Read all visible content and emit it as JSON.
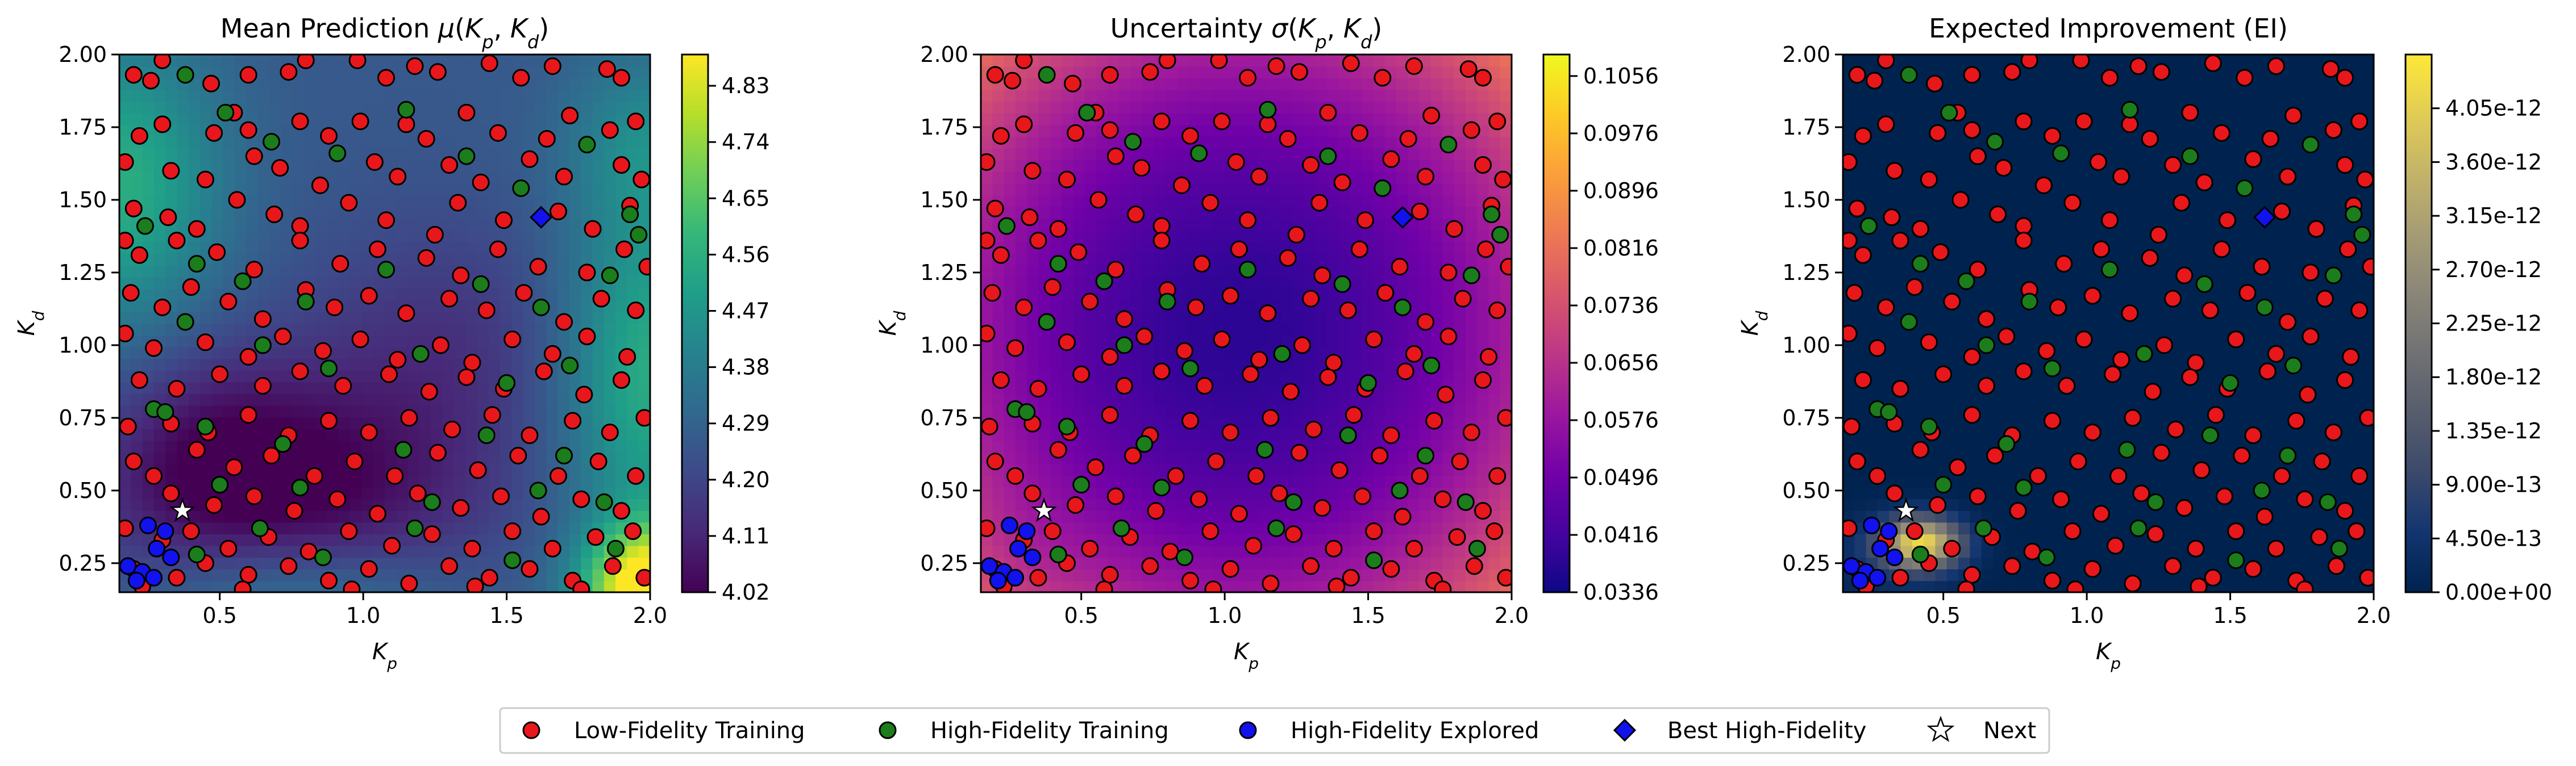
{
  "chart_data": [
    {
      "type": "heatmap",
      "title": "Mean Prediction μ(K_p, K_d)",
      "title_parts": [
        "Mean Prediction ",
        "μ",
        "(",
        "K",
        "p",
        ", ",
        "K",
        "d",
        ")"
      ],
      "xlabel": "K_p",
      "ylabel": "K_d",
      "xlim": [
        0.15,
        2.0
      ],
      "ylim": [
        0.15,
        2.0
      ],
      "xticks": [
        "0.5",
        "1.0",
        "1.5",
        "2.0"
      ],
      "yticks": [
        "0.25",
        "0.50",
        "0.75",
        "1.00",
        "1.25",
        "1.50",
        "1.75",
        "2.00"
      ],
      "colormap": "viridis",
      "colorbar_range": [
        4.02,
        4.88
      ],
      "colorbar_ticks": [
        "4.02",
        "4.11",
        "4.20",
        "4.29",
        "4.38",
        "4.47",
        "4.56",
        "4.65",
        "4.74",
        "4.83"
      ]
    },
    {
      "type": "heatmap",
      "title": "Uncertainty σ(K_p, K_d)",
      "title_parts": [
        "Uncertainty ",
        "σ",
        "(",
        "K",
        "p",
        ", ",
        "K",
        "d",
        ")"
      ],
      "xlabel": "K_p",
      "ylabel": "K_d",
      "xlim": [
        0.15,
        2.0
      ],
      "ylim": [
        0.15,
        2.0
      ],
      "xticks": [
        "0.5",
        "1.0",
        "1.5",
        "2.0"
      ],
      "yticks": [
        "0.25",
        "0.50",
        "0.75",
        "1.00",
        "1.25",
        "1.50",
        "1.75",
        "2.00"
      ],
      "colormap": "plasma",
      "colorbar_range": [
        0.0336,
        0.1086
      ],
      "colorbar_ticks": [
        "0.0336",
        "0.0416",
        "0.0496",
        "0.0576",
        "0.0656",
        "0.0736",
        "0.0816",
        "0.0896",
        "0.0976",
        "0.1056"
      ]
    },
    {
      "type": "heatmap",
      "title": "Expected Improvement (EI)",
      "xlabel": "K_p",
      "ylabel": "K_d",
      "xlim": [
        0.15,
        2.0
      ],
      "ylim": [
        0.15,
        2.0
      ],
      "xticks": [
        "0.5",
        "1.0",
        "1.5",
        "2.0"
      ],
      "yticks": [
        "0.25",
        "0.50",
        "0.75",
        "1.00",
        "1.25",
        "1.50",
        "1.75",
        "2.00"
      ],
      "colormap": "cividis",
      "colorbar_range": [
        0,
        4.5e-12
      ],
      "colorbar_ticks": [
        "0.00e+00",
        "4.50e-13",
        "9.00e-13",
        "1.35e-12",
        "1.80e-12",
        "2.25e-12",
        "2.70e-12",
        "3.15e-12",
        "3.60e-12",
        "4.05e-12"
      ]
    }
  ],
  "points": {
    "low_fidelity": [
      [
        0.2,
        1.93
      ],
      [
        0.26,
        1.91
      ],
      [
        0.3,
        1.98
      ],
      [
        0.47,
        1.9
      ],
      [
        0.6,
        1.93
      ],
      [
        0.74,
        1.94
      ],
      [
        0.8,
        1.98
      ],
      [
        0.98,
        1.98
      ],
      [
        1.08,
        1.92
      ],
      [
        1.18,
        1.96
      ],
      [
        1.26,
        1.94
      ],
      [
        1.44,
        1.97
      ],
      [
        1.55,
        1.92
      ],
      [
        1.66,
        1.96
      ],
      [
        1.85,
        1.95
      ],
      [
        1.9,
        1.92
      ],
      [
        0.22,
        1.72
      ],
      [
        0.3,
        1.76
      ],
      [
        0.48,
        1.73
      ],
      [
        0.55,
        1.8
      ],
      [
        0.6,
        1.74
      ],
      [
        0.78,
        1.77
      ],
      [
        0.88,
        1.72
      ],
      [
        0.99,
        1.77
      ],
      [
        1.15,
        1.76
      ],
      [
        1.22,
        1.71
      ],
      [
        1.36,
        1.8
      ],
      [
        1.47,
        1.73
      ],
      [
        1.64,
        1.71
      ],
      [
        1.72,
        1.79
      ],
      [
        1.86,
        1.74
      ],
      [
        1.95,
        1.77
      ],
      [
        0.17,
        1.63
      ],
      [
        0.33,
        1.6
      ],
      [
        0.45,
        1.57
      ],
      [
        0.62,
        1.65
      ],
      [
        0.71,
        1.61
      ],
      [
        0.85,
        1.55
      ],
      [
        1.04,
        1.63
      ],
      [
        1.12,
        1.58
      ],
      [
        1.3,
        1.62
      ],
      [
        1.41,
        1.56
      ],
      [
        1.58,
        1.64
      ],
      [
        1.7,
        1.58
      ],
      [
        1.9,
        1.62
      ],
      [
        1.97,
        1.57
      ],
      [
        0.2,
        1.47
      ],
      [
        0.32,
        1.44
      ],
      [
        0.42,
        1.4
      ],
      [
        0.56,
        1.5
      ],
      [
        0.69,
        1.45
      ],
      [
        0.78,
        1.41
      ],
      [
        0.95,
        1.49
      ],
      [
        1.08,
        1.43
      ],
      [
        1.25,
        1.38
      ],
      [
        1.33,
        1.49
      ],
      [
        1.49,
        1.43
      ],
      [
        1.68,
        1.46
      ],
      [
        1.8,
        1.4
      ],
      [
        1.93,
        1.48
      ],
      [
        0.17,
        1.36
      ],
      [
        0.22,
        1.31
      ],
      [
        0.35,
        1.36
      ],
      [
        0.49,
        1.32
      ],
      [
        0.62,
        1.26
      ],
      [
        0.78,
        1.36
      ],
      [
        0.92,
        1.28
      ],
      [
        1.05,
        1.33
      ],
      [
        1.22,
        1.3
      ],
      [
        1.34,
        1.24
      ],
      [
        1.47,
        1.33
      ],
      [
        1.61,
        1.27
      ],
      [
        1.78,
        1.25
      ],
      [
        1.91,
        1.33
      ],
      [
        1.99,
        1.27
      ],
      [
        0.19,
        1.18
      ],
      [
        0.3,
        1.13
      ],
      [
        0.4,
        1.2
      ],
      [
        0.53,
        1.15
      ],
      [
        0.65,
        1.09
      ],
      [
        0.8,
        1.19
      ],
      [
        0.9,
        1.13
      ],
      [
        1.02,
        1.17
      ],
      [
        1.15,
        1.11
      ],
      [
        1.3,
        1.16
      ],
      [
        1.43,
        1.12
      ],
      [
        1.56,
        1.18
      ],
      [
        1.7,
        1.08
      ],
      [
        1.83,
        1.16
      ],
      [
        1.95,
        1.12
      ],
      [
        0.17,
        1.04
      ],
      [
        0.27,
        0.99
      ],
      [
        0.45,
        1.01
      ],
      [
        0.6,
        0.96
      ],
      [
        0.72,
        1.03
      ],
      [
        0.86,
        0.98
      ],
      [
        0.99,
        1.02
      ],
      [
        1.12,
        0.95
      ],
      [
        1.27,
        1.0
      ],
      [
        1.38,
        0.94
      ],
      [
        1.52,
        1.02
      ],
      [
        1.66,
        0.97
      ],
      [
        1.78,
        1.03
      ],
      [
        1.92,
        0.96
      ],
      [
        0.22,
        0.88
      ],
      [
        0.35,
        0.85
      ],
      [
        0.5,
        0.9
      ],
      [
        0.65,
        0.86
      ],
      [
        0.78,
        0.91
      ],
      [
        0.93,
        0.86
      ],
      [
        1.09,
        0.9
      ],
      [
        1.23,
        0.84
      ],
      [
        1.36,
        0.89
      ],
      [
        1.49,
        0.85
      ],
      [
        1.63,
        0.91
      ],
      [
        1.77,
        0.83
      ],
      [
        1.9,
        0.88
      ],
      [
        0.18,
        0.72
      ],
      [
        0.33,
        0.73
      ],
      [
        0.46,
        0.7
      ],
      [
        0.6,
        0.76
      ],
      [
        0.74,
        0.69
      ],
      [
        0.88,
        0.74
      ],
      [
        1.02,
        0.7
      ],
      [
        1.16,
        0.75
      ],
      [
        1.31,
        0.71
      ],
      [
        1.45,
        0.76
      ],
      [
        1.58,
        0.69
      ],
      [
        1.73,
        0.74
      ],
      [
        1.86,
        0.7
      ],
      [
        1.98,
        0.75
      ],
      [
        0.2,
        0.6
      ],
      [
        0.27,
        0.55
      ],
      [
        0.42,
        0.64
      ],
      [
        0.55,
        0.58
      ],
      [
        0.68,
        0.62
      ],
      [
        0.83,
        0.55
      ],
      [
        0.97,
        0.6
      ],
      [
        1.11,
        0.55
      ],
      [
        1.26,
        0.63
      ],
      [
        1.4,
        0.57
      ],
      [
        1.54,
        0.62
      ],
      [
        1.68,
        0.55
      ],
      [
        1.82,
        0.6
      ],
      [
        1.95,
        0.55
      ],
      [
        0.33,
        0.49
      ],
      [
        0.48,
        0.45
      ],
      [
        0.62,
        0.48
      ],
      [
        0.76,
        0.43
      ],
      [
        0.91,
        0.47
      ],
      [
        1.05,
        0.42
      ],
      [
        1.19,
        0.49
      ],
      [
        1.34,
        0.44
      ],
      [
        1.48,
        0.48
      ],
      [
        1.62,
        0.41
      ],
      [
        1.76,
        0.47
      ],
      [
        1.9,
        0.43
      ],
      [
        0.17,
        0.37
      ],
      [
        0.3,
        0.33
      ],
      [
        0.4,
        0.36
      ],
      [
        0.53,
        0.3
      ],
      [
        0.67,
        0.34
      ],
      [
        0.81,
        0.29
      ],
      [
        0.95,
        0.36
      ],
      [
        1.1,
        0.31
      ],
      [
        1.24,
        0.35
      ],
      [
        1.38,
        0.3
      ],
      [
        1.52,
        0.36
      ],
      [
        1.66,
        0.3
      ],
      [
        1.81,
        0.34
      ],
      [
        1.94,
        0.36
      ],
      [
        0.2,
        0.23
      ],
      [
        0.35,
        0.2
      ],
      [
        0.45,
        0.25
      ],
      [
        0.6,
        0.21
      ],
      [
        0.74,
        0.24
      ],
      [
        0.88,
        0.19
      ],
      [
        1.02,
        0.23
      ],
      [
        1.16,
        0.18
      ],
      [
        1.3,
        0.24
      ],
      [
        1.44,
        0.2
      ],
      [
        1.58,
        0.23
      ],
      [
        1.73,
        0.19
      ],
      [
        1.87,
        0.24
      ],
      [
        1.98,
        0.2
      ],
      [
        0.23,
        0.17
      ],
      [
        0.58,
        0.16
      ],
      [
        0.96,
        0.16
      ],
      [
        1.39,
        0.17
      ],
      [
        1.76,
        0.16
      ]
    ],
    "high_fidelity": [
      [
        0.38,
        1.93
      ],
      [
        0.52,
        1.8
      ],
      [
        0.68,
        1.7
      ],
      [
        0.91,
        1.66
      ],
      [
        1.15,
        1.81
      ],
      [
        1.36,
        1.65
      ],
      [
        1.55,
        1.54
      ],
      [
        1.78,
        1.69
      ],
      [
        1.93,
        1.45
      ],
      [
        1.96,
        1.38
      ],
      [
        0.24,
        1.41
      ],
      [
        0.42,
        1.28
      ],
      [
        0.58,
        1.22
      ],
      [
        0.8,
        1.15
      ],
      [
        1.08,
        1.26
      ],
      [
        1.41,
        1.21
      ],
      [
        1.62,
        1.13
      ],
      [
        1.86,
        1.24
      ],
      [
        0.38,
        1.08
      ],
      [
        0.65,
        1.0
      ],
      [
        0.88,
        0.92
      ],
      [
        1.2,
        0.97
      ],
      [
        1.5,
        0.87
      ],
      [
        1.72,
        0.93
      ],
      [
        0.27,
        0.78
      ],
      [
        0.31,
        0.77
      ],
      [
        0.45,
        0.72
      ],
      [
        0.72,
        0.66
      ],
      [
        1.14,
        0.64
      ],
      [
        1.43,
        0.69
      ],
      [
        1.7,
        0.62
      ],
      [
        0.5,
        0.52
      ],
      [
        0.78,
        0.51
      ],
      [
        1.24,
        0.46
      ],
      [
        1.61,
        0.5
      ],
      [
        1.84,
        0.46
      ],
      [
        0.42,
        0.28
      ],
      [
        0.64,
        0.37
      ],
      [
        0.86,
        0.27
      ],
      [
        1.18,
        0.37
      ],
      [
        1.52,
        0.26
      ],
      [
        1.88,
        0.3
      ]
    ],
    "high_fidelity_explored": [
      [
        0.25,
        0.38
      ],
      [
        0.31,
        0.36
      ],
      [
        0.28,
        0.3
      ],
      [
        0.33,
        0.27
      ],
      [
        0.18,
        0.24
      ],
      [
        0.23,
        0.22
      ],
      [
        0.27,
        0.2
      ],
      [
        0.21,
        0.19
      ]
    ],
    "best_high_fidelity": [
      1.62,
      1.44
    ],
    "next": [
      0.37,
      0.43
    ]
  },
  "legend": [
    {
      "label": "Low-Fidelity Training",
      "marker": "circle",
      "color": "#e8171c"
    },
    {
      "label": "High-Fidelity Training",
      "marker": "circle",
      "color": "#1b7d1b"
    },
    {
      "label": "High-Fidelity Explored",
      "marker": "circle",
      "color": "#1212ef"
    },
    {
      "label": "Best High-Fidelity",
      "marker": "diamond",
      "color": "#1212ef"
    },
    {
      "label": "Next",
      "marker": "star",
      "color": "#ffffff"
    }
  ]
}
